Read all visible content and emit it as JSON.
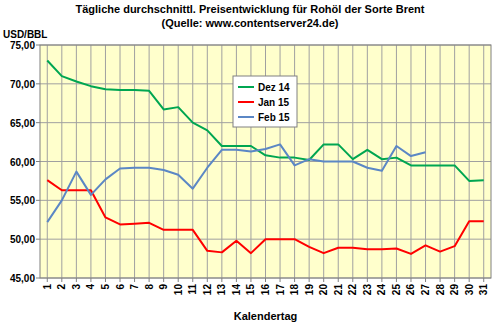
{
  "chart_data": {
    "type": "line",
    "title": "Tägliche durchschnittl. Preisentwicklung für  Rohöl der Sorte Brent",
    "subtitle": "(Quelle: www.contentserver24.de)",
    "y_label": "USD/BBL",
    "x_label": "Kalendertag",
    "x": [
      1,
      2,
      3,
      4,
      5,
      6,
      7,
      8,
      9,
      10,
      11,
      12,
      13,
      14,
      15,
      16,
      17,
      18,
      19,
      20,
      21,
      22,
      23,
      24,
      25,
      26,
      27,
      28,
      29,
      30,
      31
    ],
    "xlim": [
      0.5,
      31.5
    ],
    "xticks": [
      1,
      2,
      3,
      4,
      5,
      6,
      7,
      8,
      9,
      10,
      11,
      12,
      13,
      14,
      15,
      16,
      17,
      18,
      19,
      20,
      21,
      22,
      23,
      24,
      25,
      26,
      27,
      28,
      29,
      30,
      31
    ],
    "ylim": [
      45,
      75
    ],
    "yticks": [
      {
        "value": 45,
        "label": "45,00"
      },
      {
        "value": 50,
        "label": "50,00"
      },
      {
        "value": 55,
        "label": "55,00"
      },
      {
        "value": 60,
        "label": "60,00"
      },
      {
        "value": 65,
        "label": "65,00"
      },
      {
        "value": 70,
        "label": "70,00"
      },
      {
        "value": 75,
        "label": "75,00"
      }
    ],
    "grid": true,
    "legend": "top",
    "series": [
      {
        "name": "Dez 14",
        "color": "#00a651",
        "values": [
          73,
          71,
          70.3,
          69.7,
          69.3,
          69.2,
          69.2,
          69.1,
          66.7,
          67,
          65,
          64,
          62,
          62,
          62,
          60.8,
          60.5,
          60.5,
          60.2,
          62.2,
          62.2,
          60.3,
          61.5,
          60.3,
          60.5,
          59.5,
          59.5,
          59.5,
          59.5,
          57.5,
          57.6
        ]
      },
      {
        "name": "Jan 15",
        "color": "#ff0000",
        "values": [
          57.6,
          56.3,
          56.3,
          56.3,
          52.8,
          51.9,
          52,
          52.1,
          51.2,
          51.2,
          51.2,
          48.5,
          48.3,
          49.8,
          48.2,
          50,
          50,
          50,
          49,
          48.2,
          48.9,
          48.9,
          48.7,
          48.7,
          48.8,
          48.1,
          49.2,
          48.4,
          49.1,
          52.3,
          52.3
        ]
      },
      {
        "name": "Feb 15",
        "color": "#5b87c5",
        "values": [
          52.2,
          55,
          58.7,
          55.7,
          57.7,
          59.1,
          59.2,
          59.2,
          58.9,
          58.3,
          56.5,
          59.2,
          61.5,
          61.5,
          61.3,
          61.6,
          62.2,
          59.5,
          60.3,
          60,
          60,
          60,
          59.2,
          58.8,
          62,
          60.7,
          61.2,
          null,
          null,
          null,
          null
        ]
      }
    ]
  }
}
